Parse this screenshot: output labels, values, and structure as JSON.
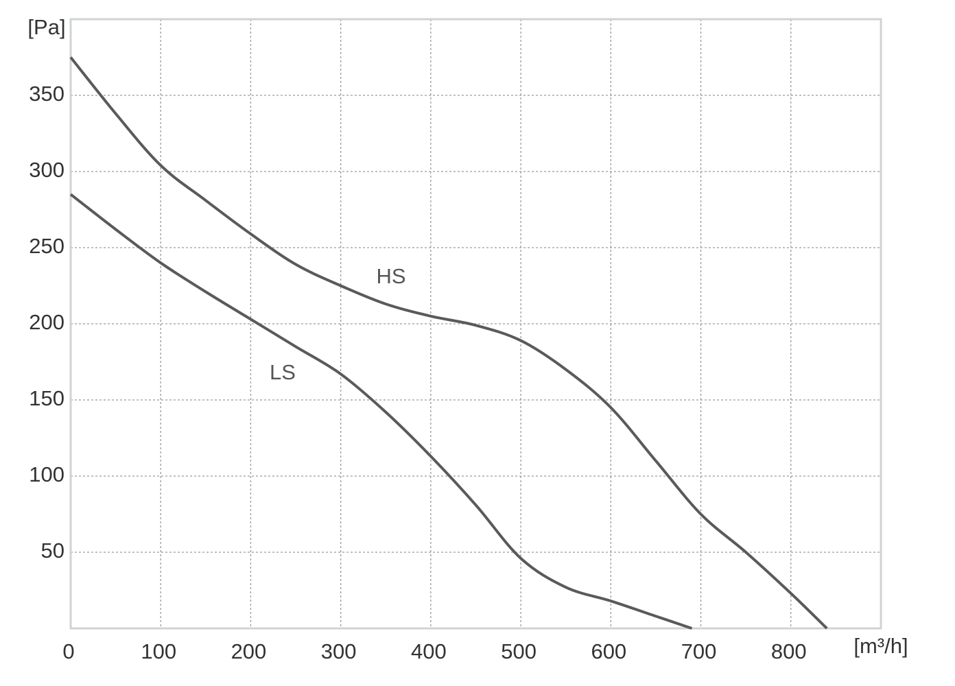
{
  "chart_data": {
    "type": "line",
    "y_label": "[Pa]",
    "x_label": "[m³/h]",
    "x": [
      0,
      50,
      100,
      150,
      200,
      250,
      300,
      350,
      400,
      450,
      500,
      550,
      600,
      650,
      700,
      750,
      800,
      840
    ],
    "series": [
      {
        "name": "HS",
        "color": "#5a5a5a",
        "x": [
          0,
          50,
          100,
          150,
          200,
          250,
          300,
          350,
          400,
          450,
          500,
          550,
          600,
          650,
          700,
          750,
          800,
          840
        ],
        "values": [
          375,
          338,
          304,
          281,
          259,
          239,
          225,
          213,
          205,
          199,
          189,
          170,
          145,
          110,
          75,
          50,
          23,
          0
        ]
      },
      {
        "name": "LS",
        "color": "#5a5a5a",
        "x": [
          0,
          50,
          100,
          150,
          200,
          250,
          300,
          350,
          400,
          450,
          500,
          550,
          600,
          650,
          690
        ],
        "values": [
          285,
          262,
          240,
          221,
          203,
          185,
          167,
          142,
          113,
          81,
          46,
          27,
          18,
          8,
          0
        ]
      }
    ],
    "xlim": [
      0,
      900
    ],
    "ylim": [
      0,
      400
    ],
    "xticks": [
      0,
      100,
      200,
      300,
      400,
      500,
      600,
      700,
      800
    ],
    "yticks": [
      50,
      100,
      150,
      200,
      250,
      300,
      350
    ],
    "grid": true
  }
}
